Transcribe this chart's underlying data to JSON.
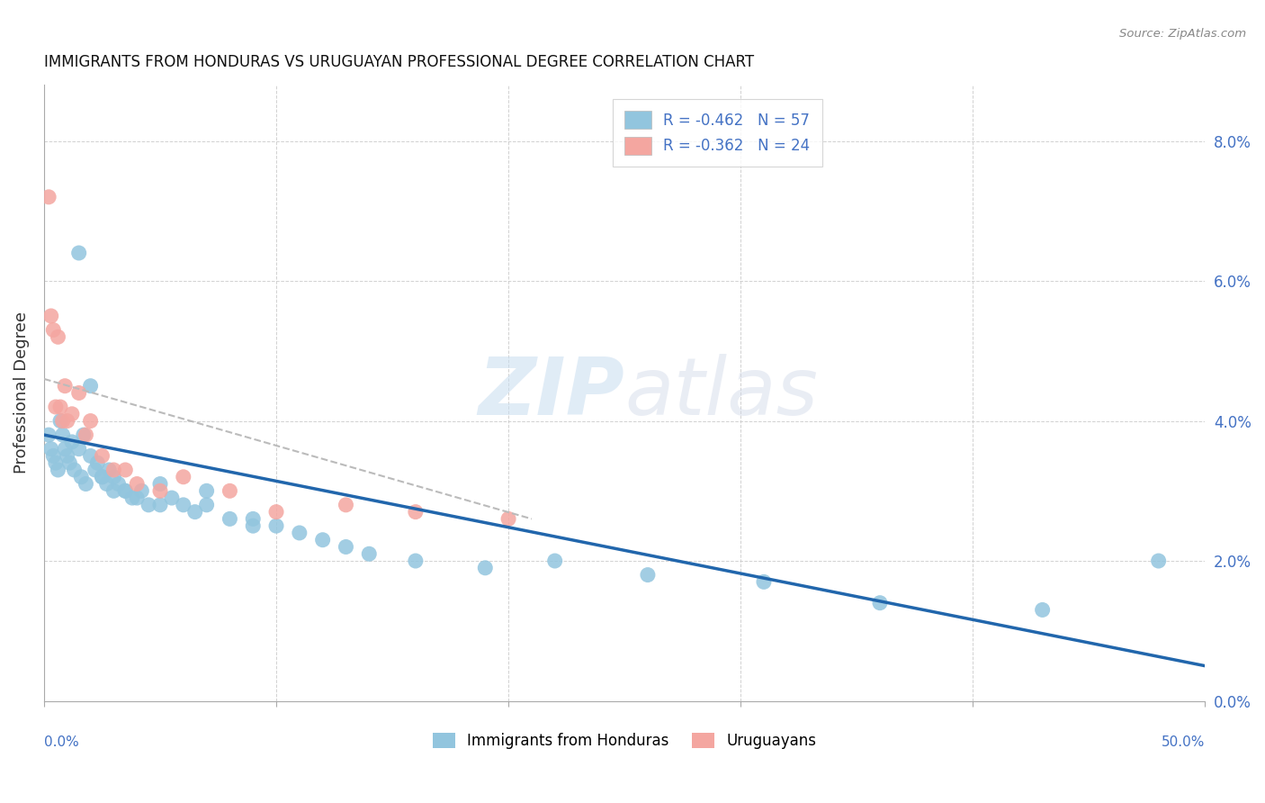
{
  "title": "IMMIGRANTS FROM HONDURAS VS URUGUAYAN PROFESSIONAL DEGREE CORRELATION CHART",
  "source": "Source: ZipAtlas.com",
  "ylabel": "Professional Degree",
  "right_ytick_vals": [
    0.0,
    0.02,
    0.04,
    0.06,
    0.08
  ],
  "xlim": [
    0.0,
    0.5
  ],
  "ylim": [
    0.0,
    0.088
  ],
  "legend_r1": "R = -0.462   N = 57",
  "legend_r2": "R = -0.362   N = 24",
  "blue_color": "#92c5de",
  "pink_color": "#f4a6a0",
  "blue_line_color": "#2166ac",
  "pink_line_color": "#bbbbbb",
  "blue_scatter_x": [
    0.002,
    0.003,
    0.004,
    0.005,
    0.006,
    0.007,
    0.008,
    0.009,
    0.01,
    0.011,
    0.012,
    0.013,
    0.015,
    0.016,
    0.017,
    0.018,
    0.02,
    0.022,
    0.023,
    0.025,
    0.027,
    0.028,
    0.03,
    0.032,
    0.035,
    0.038,
    0.04,
    0.042,
    0.045,
    0.05,
    0.055,
    0.06,
    0.065,
    0.07,
    0.08,
    0.09,
    0.1,
    0.11,
    0.12,
    0.13,
    0.015,
    0.02,
    0.025,
    0.03,
    0.035,
    0.05,
    0.07,
    0.09,
    0.14,
    0.16,
    0.19,
    0.22,
    0.26,
    0.31,
    0.36,
    0.43,
    0.48
  ],
  "blue_scatter_y": [
    0.038,
    0.036,
    0.035,
    0.034,
    0.033,
    0.04,
    0.038,
    0.036,
    0.035,
    0.034,
    0.037,
    0.033,
    0.036,
    0.032,
    0.038,
    0.031,
    0.035,
    0.033,
    0.034,
    0.032,
    0.031,
    0.033,
    0.03,
    0.031,
    0.03,
    0.029,
    0.029,
    0.03,
    0.028,
    0.031,
    0.029,
    0.028,
    0.027,
    0.028,
    0.026,
    0.025,
    0.025,
    0.024,
    0.023,
    0.022,
    0.064,
    0.045,
    0.032,
    0.032,
    0.03,
    0.028,
    0.03,
    0.026,
    0.021,
    0.02,
    0.019,
    0.02,
    0.018,
    0.017,
    0.014,
    0.013,
    0.02
  ],
  "blue_trendline_x": [
    0.0,
    0.5
  ],
  "blue_trendline_y": [
    0.038,
    0.005
  ],
  "pink_scatter_x": [
    0.002,
    0.003,
    0.004,
    0.005,
    0.006,
    0.007,
    0.008,
    0.009,
    0.01,
    0.012,
    0.015,
    0.018,
    0.02,
    0.025,
    0.03,
    0.035,
    0.04,
    0.05,
    0.06,
    0.08,
    0.1,
    0.13,
    0.16,
    0.2
  ],
  "pink_scatter_y": [
    0.072,
    0.055,
    0.053,
    0.042,
    0.052,
    0.042,
    0.04,
    0.045,
    0.04,
    0.041,
    0.044,
    0.038,
    0.04,
    0.035,
    0.033,
    0.033,
    0.031,
    0.03,
    0.032,
    0.03,
    0.027,
    0.028,
    0.027,
    0.026
  ],
  "pink_trendline_x": [
    0.0,
    0.21
  ],
  "pink_trendline_y": [
    0.046,
    0.026
  ]
}
